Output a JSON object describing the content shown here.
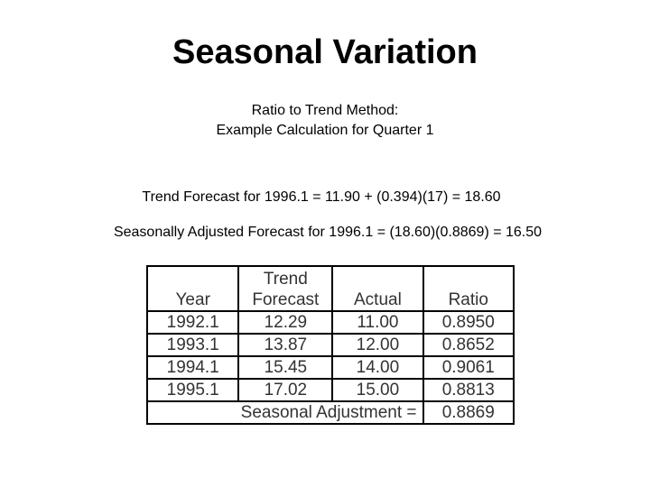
{
  "slide": {
    "title": "Seasonal Variation",
    "subtitle_line1": "Ratio to Trend Method:",
    "subtitle_line2": "Example Calculation for Quarter 1",
    "formula1": "Trend Forecast for 1996.1 = 11.90 + (0.394)(17) = 18.60",
    "formula2": "Seasonally Adjusted Forecast for 1996.1 = (18.60)(0.8869) = 16.50"
  },
  "table": {
    "headers": {
      "year": "Year",
      "trend_line1": "Trend",
      "trend_line2": "Forecast",
      "actual": "Actual",
      "ratio": "Ratio"
    },
    "rows": [
      {
        "year": "1992.1",
        "trend": "12.29",
        "actual": "11.00",
        "ratio": "0.8950"
      },
      {
        "year": "1993.1",
        "trend": "13.87",
        "actual": "12.00",
        "ratio": "0.8652"
      },
      {
        "year": "1994.1",
        "trend": "15.45",
        "actual": "14.00",
        "ratio": "0.9061"
      },
      {
        "year": "1995.1",
        "trend": "17.02",
        "actual": "15.00",
        "ratio": "0.8813"
      }
    ],
    "footer": {
      "label": "Seasonal Adjustment =",
      "value": "0.8869"
    }
  }
}
